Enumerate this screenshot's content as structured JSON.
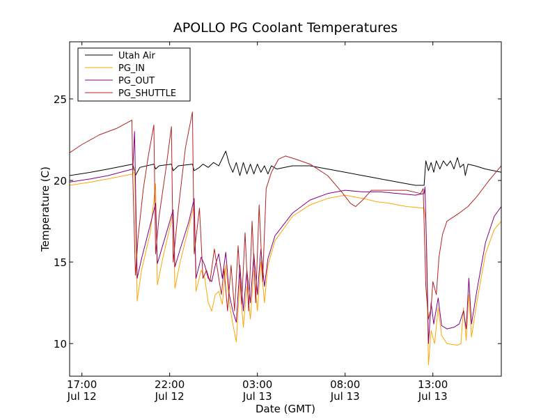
{
  "chart_data": {
    "type": "line",
    "title": "APOLLO PG Coolant Temperatures",
    "xlabel": "Date (GMT)",
    "ylabel": "Temperature (C)",
    "x_unit": "hours since Jul 12 17:00 GMT",
    "xlim": [
      -0.7,
      23.9
    ],
    "ylim": [
      8,
      28.5
    ],
    "grid": false,
    "legend_position": "top-left",
    "yticks": [
      {
        "value": 10,
        "label": "10"
      },
      {
        "value": 15,
        "label": "15"
      },
      {
        "value": 20,
        "label": "20"
      },
      {
        "value": 25,
        "label": "25"
      }
    ],
    "xticks": [
      {
        "value": 0,
        "time": "17:00",
        "date": "Jul 12"
      },
      {
        "value": 5,
        "time": "22:00",
        "date": "Jul 12"
      },
      {
        "value": 10,
        "time": "03:00",
        "date": "Jul 13"
      },
      {
        "value": 15,
        "time": "08:00",
        "date": "Jul 13"
      },
      {
        "value": 20,
        "time": "13:00",
        "date": "Jul 13"
      }
    ],
    "series": [
      {
        "name": "Utah Air",
        "color": "#000000",
        "points": [
          [
            -0.7,
            20.3
          ],
          [
            0.5,
            20.5
          ],
          [
            1.5,
            20.7
          ],
          [
            2.9,
            21.0
          ],
          [
            3.05,
            20.3
          ],
          [
            3.3,
            20.8
          ],
          [
            4.1,
            21.0
          ],
          [
            4.2,
            20.7
          ],
          [
            4.4,
            20.9
          ],
          [
            5.1,
            21.0
          ],
          [
            5.2,
            20.6
          ],
          [
            5.5,
            20.9
          ],
          [
            6.3,
            21.0
          ],
          [
            6.4,
            20.6
          ],
          [
            6.7,
            20.8
          ],
          [
            6.9,
            21.0
          ],
          [
            7.2,
            20.8
          ],
          [
            7.5,
            21.1
          ],
          [
            7.8,
            20.9
          ],
          [
            8.2,
            21.8
          ],
          [
            8.4,
            21.0
          ],
          [
            8.6,
            20.5
          ],
          [
            8.8,
            21.1
          ],
          [
            9.0,
            20.3
          ],
          [
            9.2,
            21.1
          ],
          [
            9.4,
            20.4
          ],
          [
            9.6,
            21.0
          ],
          [
            9.8,
            20.4
          ],
          [
            10.0,
            21.0
          ],
          [
            10.2,
            20.5
          ],
          [
            10.4,
            20.9
          ],
          [
            10.6,
            20.4
          ],
          [
            10.8,
            20.9
          ],
          [
            11.1,
            20.7
          ],
          [
            12.0,
            20.9
          ],
          [
            13.0,
            20.9
          ],
          [
            14.0,
            20.7
          ],
          [
            15.0,
            20.5
          ],
          [
            16.0,
            20.3
          ],
          [
            17.0,
            20.1
          ],
          [
            18.0,
            19.9
          ],
          [
            19.0,
            19.7
          ],
          [
            19.5,
            19.7
          ],
          [
            19.6,
            21.2
          ],
          [
            19.75,
            20.6
          ],
          [
            19.9,
            21.1
          ],
          [
            20.05,
            20.5
          ],
          [
            20.2,
            21.2
          ],
          [
            20.4,
            20.7
          ],
          [
            20.6,
            21.2
          ],
          [
            20.8,
            20.9
          ],
          [
            21.0,
            21.2
          ],
          [
            21.2,
            20.7
          ],
          [
            21.4,
            21.4
          ],
          [
            21.55,
            20.8
          ],
          [
            21.75,
            21.0
          ],
          [
            21.85,
            20.3
          ],
          [
            22.0,
            21.0
          ],
          [
            22.4,
            20.9
          ],
          [
            23.0,
            20.7
          ],
          [
            23.9,
            20.5
          ]
        ]
      },
      {
        "name": "PG_IN",
        "color": "#ffa500",
        "points": [
          [
            -0.7,
            19.7
          ],
          [
            0.5,
            19.9
          ],
          [
            1.5,
            20.1
          ],
          [
            2.9,
            20.4
          ],
          [
            3.0,
            20.6
          ],
          [
            3.15,
            12.6
          ],
          [
            3.4,
            14.5
          ],
          [
            3.9,
            16.8
          ],
          [
            4.2,
            19.8
          ],
          [
            4.3,
            13.6
          ],
          [
            4.6,
            15.2
          ],
          [
            5.2,
            18.0
          ],
          [
            5.3,
            13.4
          ],
          [
            5.6,
            15.0
          ],
          [
            6.1,
            17.2
          ],
          [
            6.4,
            18.5
          ],
          [
            6.5,
            13.2
          ],
          [
            6.8,
            14.5
          ],
          [
            7.0,
            14.0
          ],
          [
            7.2,
            12.5
          ],
          [
            7.4,
            12.0
          ],
          [
            7.6,
            13.0
          ],
          [
            7.8,
            13.2
          ],
          [
            8.0,
            12.4
          ],
          [
            8.2,
            14.8
          ],
          [
            8.4,
            12.5
          ],
          [
            8.6,
            11.2
          ],
          [
            8.8,
            10.1
          ],
          [
            9.0,
            13.8
          ],
          [
            9.2,
            11.0
          ],
          [
            9.4,
            13.5
          ],
          [
            9.6,
            11.5
          ],
          [
            9.8,
            14.5
          ],
          [
            10.0,
            12.0
          ],
          [
            10.2,
            15.0
          ],
          [
            10.4,
            12.5
          ],
          [
            10.6,
            14.8
          ],
          [
            11.0,
            16.3
          ],
          [
            12.0,
            17.8
          ],
          [
            13.0,
            18.5
          ],
          [
            14.0,
            18.9
          ],
          [
            15.0,
            19.1
          ],
          [
            16.0,
            18.9
          ],
          [
            16.8,
            18.7
          ],
          [
            17.5,
            18.6
          ],
          [
            18.5,
            18.4
          ],
          [
            19.5,
            18.3
          ],
          [
            19.6,
            17.5
          ],
          [
            19.75,
            8.7
          ],
          [
            19.9,
            10.8
          ],
          [
            20.1,
            10.0
          ],
          [
            20.3,
            12.2
          ],
          [
            20.5,
            10.5
          ],
          [
            20.8,
            10.0
          ],
          [
            21.4,
            9.9
          ],
          [
            21.6,
            10.0
          ],
          [
            21.75,
            12.2
          ],
          [
            21.9,
            10.2
          ],
          [
            22.05,
            13.0
          ],
          [
            22.2,
            10.4
          ],
          [
            22.5,
            12.5
          ],
          [
            23.0,
            15.5
          ],
          [
            23.5,
            17.0
          ],
          [
            23.9,
            17.5
          ]
        ]
      },
      {
        "name": "PG_OUT",
        "color": "#800080",
        "points": [
          [
            -0.7,
            19.9
          ],
          [
            0.5,
            20.1
          ],
          [
            1.5,
            20.3
          ],
          [
            2.9,
            20.7
          ],
          [
            3.0,
            23.0
          ],
          [
            3.15,
            14.0
          ],
          [
            3.4,
            15.2
          ],
          [
            3.9,
            17.3
          ],
          [
            4.2,
            18.6
          ],
          [
            4.3,
            14.9
          ],
          [
            4.6,
            16.0
          ],
          [
            5.2,
            18.2
          ],
          [
            5.3,
            14.7
          ],
          [
            5.6,
            15.8
          ],
          [
            6.1,
            17.5
          ],
          [
            6.4,
            18.9
          ],
          [
            6.5,
            14.0
          ],
          [
            6.8,
            15.3
          ],
          [
            7.0,
            14.8
          ],
          [
            7.2,
            14.0
          ],
          [
            7.4,
            13.8
          ],
          [
            7.6,
            14.8
          ],
          [
            7.8,
            15.5
          ],
          [
            8.0,
            14.0
          ],
          [
            8.2,
            15.6
          ],
          [
            8.4,
            13.0
          ],
          [
            8.6,
            12.0
          ],
          [
            8.8,
            11.3
          ],
          [
            9.0,
            14.8
          ],
          [
            9.2,
            12.0
          ],
          [
            9.4,
            14.5
          ],
          [
            9.6,
            12.5
          ],
          [
            9.8,
            15.5
          ],
          [
            10.0,
            13.0
          ],
          [
            10.2,
            15.8
          ],
          [
            10.4,
            13.5
          ],
          [
            10.6,
            15.2
          ],
          [
            11.0,
            16.6
          ],
          [
            12.0,
            18.0
          ],
          [
            13.0,
            18.8
          ],
          [
            14.0,
            19.2
          ],
          [
            15.0,
            19.4
          ],
          [
            16.0,
            19.3
          ],
          [
            17.0,
            19.3
          ],
          [
            18.0,
            19.2
          ],
          [
            19.0,
            19.1
          ],
          [
            19.5,
            19.2
          ],
          [
            19.55,
            19.6
          ],
          [
            19.65,
            15.5
          ],
          [
            19.75,
            10.0
          ],
          [
            19.9,
            12.5
          ],
          [
            20.05,
            11.2
          ],
          [
            20.3,
            12.8
          ],
          [
            20.5,
            11.1
          ],
          [
            20.8,
            10.9
          ],
          [
            21.2,
            11.0
          ],
          [
            21.5,
            11.2
          ],
          [
            21.75,
            12.0
          ],
          [
            21.9,
            10.9
          ],
          [
            22.05,
            14.0
          ],
          [
            22.2,
            11.2
          ],
          [
            22.5,
            13.2
          ],
          [
            23.0,
            16.2
          ],
          [
            23.5,
            17.8
          ],
          [
            23.9,
            18.4
          ]
        ]
      },
      {
        "name": "PG_SHUTTLE",
        "color": "#b22222",
        "points": [
          [
            -0.7,
            21.7
          ],
          [
            0.0,
            22.2
          ],
          [
            1.0,
            22.8
          ],
          [
            2.0,
            23.2
          ],
          [
            2.85,
            23.7
          ],
          [
            2.9,
            20.3
          ],
          [
            3.05,
            14.2
          ],
          [
            3.2,
            16.5
          ],
          [
            3.5,
            19.5
          ],
          [
            3.8,
            21.6
          ],
          [
            4.1,
            23.4
          ],
          [
            4.2,
            15.5
          ],
          [
            4.4,
            17.8
          ],
          [
            4.8,
            20.8
          ],
          [
            5.1,
            23.3
          ],
          [
            5.2,
            15.0
          ],
          [
            5.5,
            18.3
          ],
          [
            5.9,
            22.0
          ],
          [
            6.3,
            24.2
          ],
          [
            6.4,
            15.5
          ],
          [
            6.7,
            18.3
          ],
          [
            6.9,
            14.0
          ],
          [
            7.1,
            14.5
          ],
          [
            7.3,
            13.8
          ],
          [
            7.55,
            15.8
          ],
          [
            7.8,
            14.0
          ],
          [
            7.95,
            13.0
          ],
          [
            8.1,
            14.6
          ],
          [
            8.3,
            12.0
          ],
          [
            8.5,
            14.8
          ],
          [
            8.7,
            12.0
          ],
          [
            8.9,
            16.0
          ],
          [
            9.1,
            12.4
          ],
          [
            9.3,
            16.8
          ],
          [
            9.5,
            12.0
          ],
          [
            9.7,
            17.5
          ],
          [
            9.9,
            12.5
          ],
          [
            10.1,
            18.5
          ],
          [
            10.3,
            13.8
          ],
          [
            10.5,
            19.5
          ],
          [
            10.8,
            20.5
          ],
          [
            11.2,
            21.3
          ],
          [
            11.6,
            21.5
          ],
          [
            12.2,
            21.3
          ],
          [
            13.0,
            21.0
          ],
          [
            14.0,
            20.3
          ],
          [
            14.8,
            19.3
          ],
          [
            15.3,
            18.6
          ],
          [
            15.6,
            18.4
          ],
          [
            16.0,
            18.8
          ],
          [
            16.5,
            19.4
          ],
          [
            17.5,
            19.4
          ],
          [
            18.5,
            19.4
          ],
          [
            19.3,
            19.2
          ],
          [
            19.45,
            19.5
          ],
          [
            19.6,
            13.5
          ],
          [
            19.75,
            11.5
          ],
          [
            19.9,
            12.2
          ],
          [
            20.0,
            13.8
          ],
          [
            20.2,
            13.0
          ],
          [
            20.35,
            15.3
          ],
          [
            20.55,
            16.7
          ],
          [
            20.8,
            17.5
          ],
          [
            21.5,
            18.0
          ],
          [
            22.0,
            18.4
          ],
          [
            22.5,
            19.0
          ],
          [
            23.2,
            20.0
          ],
          [
            23.9,
            20.9
          ]
        ]
      }
    ]
  }
}
